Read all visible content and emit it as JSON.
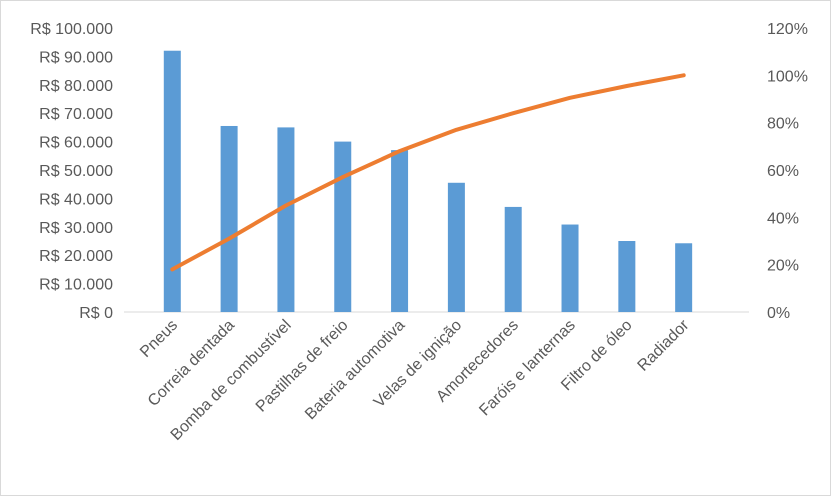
{
  "chart_data": {
    "type": "bar",
    "title": "",
    "xlabel": "",
    "ylabel": "",
    "categories": [
      "Pneus",
      "Correia dentada",
      "Bomba de combustível",
      "Pastilhas de freio",
      "Bateria automotiva",
      "Velas de ignição",
      "Amortecedores",
      "Faróis e lanternas",
      "Filtro de óleo",
      "Radiador"
    ],
    "series": [
      {
        "type": "bar",
        "axis": "left",
        "color": "#5b9bd5",
        "values": [
          92000,
          65500,
          65000,
          60000,
          57000,
          45500,
          37000,
          30800,
          25000,
          24200
        ]
      },
      {
        "type": "line",
        "axis": "right",
        "color": "#ed7d31",
        "values": [
          18,
          31,
          45,
          57,
          68,
          77,
          84,
          90.5,
          95.5,
          100
        ]
      }
    ],
    "y_left": {
      "min": 0,
      "max": 100000,
      "step": 10000,
      "tick_labels": [
        "R$ 0",
        "R$ 10.000",
        "R$ 20.000",
        "R$ 30.000",
        "R$ 40.000",
        "R$ 50.000",
        "R$ 60.000",
        "R$ 70.000",
        "R$ 80.000",
        "R$ 90.000",
        "R$ 100.000"
      ]
    },
    "y_right": {
      "min": 0,
      "max": 120,
      "step": 20,
      "tick_labels": [
        "0%",
        "20%",
        "40%",
        "60%",
        "80%",
        "100%",
        "120%"
      ]
    },
    "grid": false,
    "legend": "none"
  }
}
